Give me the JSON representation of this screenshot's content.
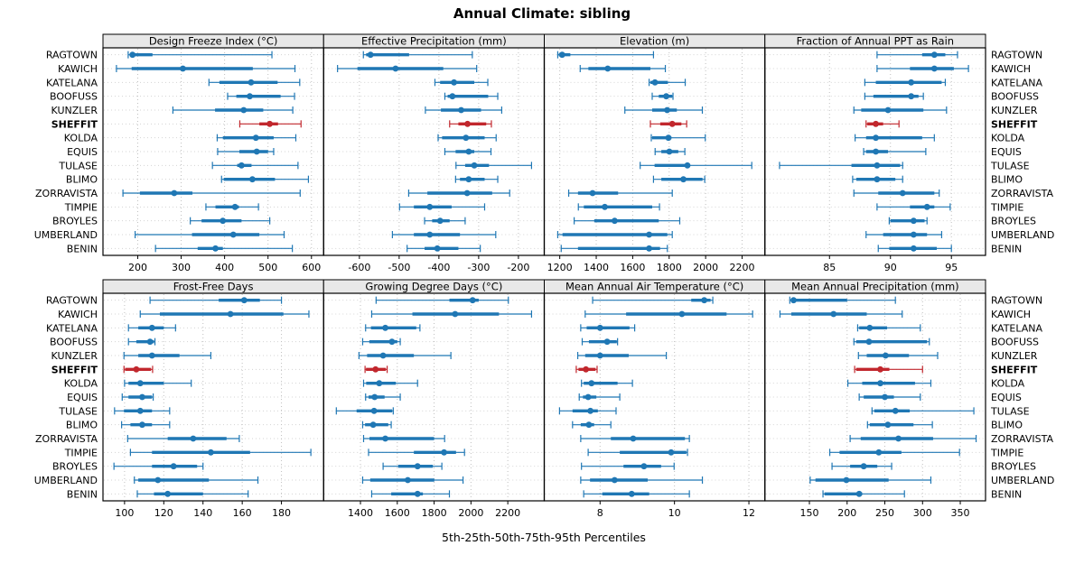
{
  "figure": {
    "title": "Annual Climate: sibling",
    "caption": "5th-25th-50th-75th-95th Percentiles"
  },
  "sites": [
    "RAGTOWN",
    "KAWICH",
    "KATELANA",
    "BOOFUSS",
    "KUNZLER",
    "SHEFFIT",
    "KOLDA",
    "EQUIS",
    "TULASE",
    "BLIMO",
    "ZORRAVISTA",
    "TIMPIE",
    "BROYLES",
    "UMBERLAND",
    "BENIN"
  ],
  "highlight_site": "SHEFFIT",
  "colors": {
    "series": "#1f77b4",
    "highlight": "#c1272d",
    "header_bg": "#e8e8e8",
    "panel_border": "#000000",
    "grid_vertical": "#bfbfbf",
    "grid_horizontal": "#d4d4d4",
    "text": "#000000"
  },
  "chart_data": {
    "type": "scatter",
    "style": "percentile-interval-dot-plot",
    "percentiles": [
      5,
      25,
      50,
      75,
      95
    ],
    "legend_position": "none",
    "grid": true,
    "panels": [
      {
        "title": "Design Freeze Index (°C)",
        "row": 0,
        "col": 0,
        "xlim": [
          120,
          628
        ],
        "ticks": [
          200,
          300,
          400,
          500,
          600
        ],
        "values": [
          [
            178,
            182,
            188,
            234,
            509
          ],
          [
            151,
            186,
            304,
            465,
            562
          ],
          [
            364,
            388,
            461,
            522,
            573
          ],
          [
            407,
            427,
            458,
            529,
            561
          ],
          [
            281,
            378,
            444,
            489,
            557
          ],
          [
            435,
            480,
            504,
            523,
            576
          ],
          [
            383,
            396,
            472,
            513,
            564
          ],
          [
            384,
            434,
            474,
            500,
            513
          ],
          [
            372,
            429,
            439,
            462,
            569
          ],
          [
            393,
            398,
            464,
            516,
            593
          ],
          [
            166,
            205,
            284,
            326,
            574
          ],
          [
            357,
            379,
            424,
            433,
            478
          ],
          [
            321,
            347,
            396,
            439,
            504
          ],
          [
            194,
            325,
            420,
            480,
            537
          ],
          [
            241,
            338,
            379,
            396,
            556
          ]
        ]
      },
      {
        "title": "Effective Precipitation (mm)",
        "row": 0,
        "col": 1,
        "xlim": [
          -690,
          -135
        ],
        "ticks": [
          -600,
          -500,
          -400,
          -300,
          -200
        ],
        "values": [
          [
            -590,
            -583,
            -572,
            -475,
            -316
          ],
          [
            -655,
            -605,
            -509,
            -389,
            -305
          ],
          [
            -410,
            -397,
            -362,
            -311,
            -277
          ],
          [
            -385,
            -378,
            -366,
            -276,
            -252
          ],
          [
            -434,
            -395,
            -344,
            -294,
            -242
          ],
          [
            -373,
            -351,
            -328,
            -281,
            -268
          ],
          [
            -402,
            -392,
            -332,
            -285,
            -256
          ],
          [
            -385,
            -358,
            -325,
            -311,
            -269
          ],
          [
            -357,
            -334,
            -311,
            -274,
            -167
          ],
          [
            -358,
            -347,
            -325,
            -285,
            -252
          ],
          [
            -476,
            -429,
            -329,
            -266,
            -222
          ],
          [
            -499,
            -463,
            -423,
            -368,
            -285
          ],
          [
            -436,
            -417,
            -397,
            -373,
            -334
          ],
          [
            -517,
            -463,
            -423,
            -347,
            -257
          ],
          [
            -480,
            -436,
            -404,
            -351,
            -296
          ]
        ]
      },
      {
        "title": "Elevation (m)",
        "row": 0,
        "col": 2,
        "xlim": [
          1115,
          2325
        ],
        "ticks": [
          1200,
          1400,
          1600,
          1800,
          2000,
          2200
        ],
        "values": [
          [
            1189,
            1195,
            1213,
            1258,
            1714
          ],
          [
            1312,
            1357,
            1463,
            1697,
            1779
          ],
          [
            1690,
            1697,
            1722,
            1793,
            1888
          ],
          [
            1707,
            1743,
            1784,
            1817,
            1821
          ],
          [
            1557,
            1707,
            1789,
            1842,
            1982
          ],
          [
            1697,
            1751,
            1817,
            1867,
            1896
          ],
          [
            1702,
            1707,
            1796,
            1812,
            1998
          ],
          [
            1723,
            1757,
            1801,
            1850,
            1886
          ],
          [
            1641,
            1720,
            1900,
            1915,
            2253
          ],
          [
            1714,
            1757,
            1878,
            1983,
            1995
          ],
          [
            1249,
            1300,
            1380,
            1520,
            1817
          ],
          [
            1302,
            1332,
            1447,
            1707,
            1747
          ],
          [
            1279,
            1389,
            1501,
            1743,
            1858
          ],
          [
            1189,
            1215,
            1690,
            1790,
            1817
          ],
          [
            1208,
            1300,
            1690,
            1750,
            1790
          ]
        ]
      },
      {
        "title": "Fraction of Annual PPT as Rain",
        "row": 0,
        "col": 3,
        "xlim": [
          79.7,
          97.8
        ],
        "ticks": [
          85,
          90,
          95
        ],
        "values": [
          [
            88.9,
            92.6,
            93.6,
            94.5,
            95.5
          ],
          [
            88.9,
            91.6,
            93.6,
            95.2,
            96.4
          ],
          [
            87.9,
            88.8,
            91.7,
            94.2,
            94.5
          ],
          [
            87.9,
            88.6,
            91.7,
            92.3,
            92.7
          ],
          [
            87.0,
            87.6,
            89.8,
            92.7,
            94.6
          ],
          [
            88.0,
            88.1,
            88.8,
            89.4,
            90.7
          ],
          [
            87.1,
            88.0,
            88.8,
            92.6,
            93.6
          ],
          [
            87.8,
            88.0,
            88.8,
            89.8,
            92.9
          ],
          [
            80.9,
            86.8,
            88.9,
            90.8,
            91.0
          ],
          [
            86.9,
            87.2,
            88.9,
            90.4,
            91.0
          ],
          [
            87.0,
            89.0,
            91.0,
            93.6,
            94.0
          ],
          [
            88.9,
            91.6,
            93.0,
            93.6,
            94.9
          ],
          [
            89.9,
            90.0,
            91.9,
            92.8,
            93.0
          ],
          [
            88.0,
            89.4,
            91.9,
            93.0,
            94.2
          ],
          [
            89.0,
            89.9,
            91.9,
            93.8,
            95.0
          ]
        ]
      },
      {
        "title": "Frost-Free Days",
        "row": 1,
        "col": 0,
        "xlim": [
          89,
          201.5
        ],
        "ticks": [
          100,
          120,
          140,
          160,
          180
        ],
        "values": [
          [
            113,
            148,
            161,
            169,
            180
          ],
          [
            108,
            118,
            154,
            181,
            194
          ],
          [
            102,
            107,
            114,
            120,
            126
          ],
          [
            102,
            106,
            113,
            115,
            115.5
          ],
          [
            99.7,
            107,
            114,
            128,
            144
          ],
          [
            99.7,
            100.3,
            106,
            113.5,
            114.3
          ],
          [
            100,
            102,
            108,
            120,
            134
          ],
          [
            98.8,
            102,
            109,
            114,
            114.6
          ],
          [
            94.9,
            99.7,
            108,
            114,
            123
          ],
          [
            98.5,
            103,
            109,
            114,
            123
          ],
          [
            101.6,
            122,
            135,
            152,
            158.5
          ],
          [
            103,
            114,
            144,
            164,
            195
          ],
          [
            94.6,
            114,
            125,
            137,
            140
          ],
          [
            105,
            107,
            117,
            143,
            168
          ],
          [
            106.5,
            115,
            122,
            140,
            163
          ]
        ]
      },
      {
        "title": "Growing Degree Days (°C)",
        "row": 1,
        "col": 1,
        "xlim": [
          1200,
          2398
        ],
        "ticks": [
          1400,
          1600,
          1800,
          2000,
          2200
        ],
        "values": [
          [
            1485,
            1883,
            2009,
            2042,
            2203
          ],
          [
            1461,
            1682,
            1914,
            2152,
            2329
          ],
          [
            1428,
            1457,
            1535,
            1703,
            1723
          ],
          [
            1412,
            1448,
            1571,
            1600,
            1616
          ],
          [
            1392,
            1436,
            1523,
            1690,
            1891
          ],
          [
            1425,
            1430,
            1482,
            1538,
            1545
          ],
          [
            1417,
            1431,
            1502,
            1592,
            1710
          ],
          [
            1428,
            1444,
            1477,
            1531,
            1616
          ],
          [
            1269,
            1379,
            1474,
            1572,
            1578
          ],
          [
            1412,
            1425,
            1469,
            1551,
            1567
          ],
          [
            1417,
            1449,
            1535,
            1800,
            1857
          ],
          [
            1444,
            1690,
            1854,
            1919,
            1965
          ],
          [
            1523,
            1605,
            1710,
            1793,
            1842
          ],
          [
            1412,
            1453,
            1657,
            1801,
            1957
          ],
          [
            1461,
            1567,
            1710,
            1739,
            1883
          ]
        ]
      },
      {
        "title": "Mean Annual Air Temperature (°C)",
        "row": 1,
        "col": 2,
        "xlim": [
          6.5,
          12.43
        ],
        "ticks": [
          8,
          10,
          12
        ],
        "values": [
          [
            7.8,
            10.45,
            10.8,
            10.97,
            11.03
          ],
          [
            7.6,
            8.7,
            10.2,
            11.4,
            12.1
          ],
          [
            7.48,
            7.64,
            8.0,
            8.79,
            8.93
          ],
          [
            7.52,
            7.7,
            8.19,
            8.45,
            8.47
          ],
          [
            7.4,
            7.6,
            8.0,
            8.77,
            9.78
          ],
          [
            7.36,
            7.42,
            7.62,
            7.88,
            7.92
          ],
          [
            7.5,
            7.56,
            7.77,
            8.47,
            8.87
          ],
          [
            7.44,
            7.54,
            7.68,
            7.9,
            8.53
          ],
          [
            6.91,
            7.26,
            7.74,
            7.94,
            8.43
          ],
          [
            7.26,
            7.48,
            7.7,
            7.84,
            8.29
          ],
          [
            7.48,
            8.29,
            8.89,
            10.28,
            10.4
          ],
          [
            7.68,
            8.53,
            9.91,
            10.32,
            10.35
          ],
          [
            7.5,
            8.63,
            9.18,
            9.64,
            9.99
          ],
          [
            7.48,
            7.73,
            8.39,
            9.28,
            10.75
          ],
          [
            7.56,
            8.06,
            8.85,
            9.32,
            10.4
          ]
        ]
      },
      {
        "title": "Mean Annual Precipitation (mm)",
        "row": 1,
        "col": 3,
        "xlim": [
          91,
          383.5
        ],
        "ticks": [
          150,
          200,
          250,
          300,
          350
        ],
        "values": [
          [
            124,
            126,
            129,
            200,
            264
          ],
          [
            111,
            126,
            182,
            226,
            273
          ],
          [
            214,
            216,
            230,
            253,
            297
          ],
          [
            209,
            212,
            229,
            306,
            309
          ],
          [
            215,
            226,
            251,
            282,
            320
          ],
          [
            210,
            212,
            244,
            256,
            300
          ],
          [
            201,
            220,
            244,
            290,
            311
          ],
          [
            216,
            222,
            250,
            262,
            297
          ],
          [
            233,
            236,
            264,
            283,
            368
          ],
          [
            227,
            230,
            254,
            288,
            313
          ],
          [
            204,
            218,
            268,
            314,
            371
          ],
          [
            177,
            190,
            242,
            272,
            349
          ],
          [
            180,
            204,
            222,
            240,
            259
          ],
          [
            151,
            158,
            199,
            255,
            311
          ],
          [
            168,
            170,
            216,
            220,
            276
          ]
        ]
      }
    ]
  }
}
